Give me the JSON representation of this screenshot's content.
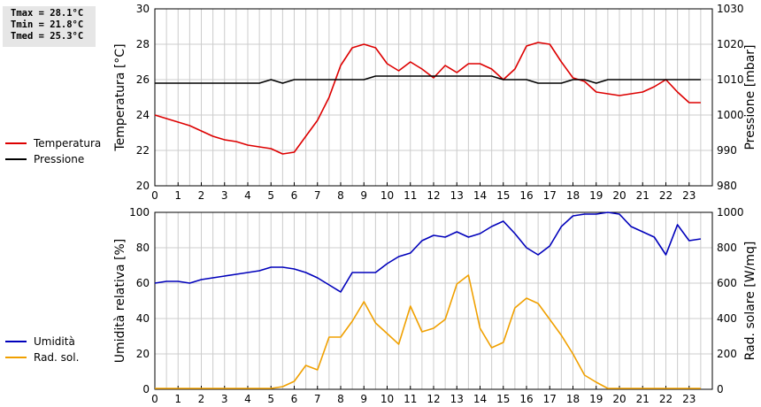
{
  "stats": {
    "tmax": "Tmax = 28.1°C",
    "tmin": "Tmin = 21.8°C",
    "tmed": "Tmed = 25.3°C"
  },
  "colors": {
    "temperature": "#dd0000",
    "pressure": "#000000",
    "humidity": "#0000bb",
    "radiation": "#f0a000",
    "grid": "#cccccc"
  },
  "chart_data": [
    {
      "type": "line",
      "x_ticks": [
        "0",
        "1",
        "2",
        "3",
        "4",
        "5",
        "6",
        "7",
        "8",
        "9",
        "10",
        "11",
        "12",
        "13",
        "14",
        "15",
        "16",
        "17",
        "18",
        "19",
        "20",
        "21",
        "22",
        "23"
      ],
      "xlim": [
        0,
        24
      ],
      "ylabel": "Temperatura [°C]",
      "ylabel_right": "Pressione [mbar]",
      "ylim": [
        20,
        30
      ],
      "ylim_right": [
        980,
        1030
      ],
      "yticks": [
        "20",
        "22",
        "24",
        "26",
        "28",
        "30"
      ],
      "yticks_right": [
        "980",
        "990",
        "1000",
        "1010",
        "1020",
        "1030"
      ],
      "grid": true,
      "legend_position": "left",
      "series": [
        {
          "name": "Temperatura",
          "axis": "left",
          "color_key": "temperature",
          "x": [
            0,
            0.5,
            1,
            1.5,
            2,
            2.5,
            3,
            3.5,
            4,
            4.5,
            5,
            5.5,
            6,
            6.5,
            7,
            7.5,
            8,
            8.5,
            9,
            9.5,
            10,
            10.5,
            11,
            11.5,
            12,
            12.5,
            13,
            13.5,
            14,
            14.5,
            15,
            15.5,
            16,
            16.5,
            17,
            17.5,
            18,
            18.5,
            19,
            19.5,
            20,
            20.5,
            21,
            21.5,
            22,
            22.5,
            23,
            23.5
          ],
          "values": [
            24.0,
            23.8,
            23.6,
            23.4,
            23.1,
            22.8,
            22.6,
            22.5,
            22.3,
            22.2,
            22.1,
            21.8,
            21.9,
            22.8,
            23.7,
            25.0,
            26.8,
            27.8,
            28.0,
            27.8,
            26.9,
            26.5,
            27.0,
            26.6,
            26.1,
            26.8,
            26.4,
            26.9,
            26.9,
            26.6,
            26.0,
            26.6,
            27.9,
            28.1,
            28.0,
            27.0,
            26.1,
            25.9,
            25.3,
            25.2,
            25.1,
            25.2,
            25.3,
            25.6,
            26.0,
            25.3,
            24.7,
            24.7
          ]
        },
        {
          "name": "Pressione",
          "axis": "right",
          "color_key": "pressure",
          "x": [
            0,
            0.5,
            1,
            1.5,
            2,
            2.5,
            3,
            3.5,
            4,
            4.5,
            5,
            5.5,
            6,
            6.5,
            7,
            7.5,
            8,
            8.5,
            9,
            9.5,
            10,
            10.5,
            11,
            11.5,
            12,
            12.5,
            13,
            13.5,
            14,
            14.5,
            15,
            15.5,
            16,
            16.5,
            17,
            17.5,
            18,
            18.5,
            19,
            19.5,
            20,
            20.5,
            21,
            21.5,
            22,
            22.5,
            23,
            23.5
          ],
          "values": [
            1009,
            1009,
            1009,
            1009,
            1009,
            1009,
            1009,
            1009,
            1009,
            1009,
            1010,
            1009,
            1010,
            1010,
            1010,
            1010,
            1010,
            1010,
            1010,
            1011,
            1011,
            1011,
            1011,
            1011,
            1011,
            1011,
            1011,
            1011,
            1011,
            1011,
            1010,
            1010,
            1010,
            1009,
            1009,
            1009,
            1010,
            1010,
            1009,
            1010,
            1010,
            1010,
            1010,
            1010,
            1010,
            1010,
            1010,
            1010
          ]
        }
      ]
    },
    {
      "type": "line",
      "x_ticks": [
        "0",
        "1",
        "2",
        "3",
        "4",
        "5",
        "6",
        "7",
        "8",
        "9",
        "10",
        "11",
        "12",
        "13",
        "14",
        "15",
        "16",
        "17",
        "18",
        "19",
        "20",
        "21",
        "22",
        "23"
      ],
      "xlim": [
        0,
        24
      ],
      "ylabel": "Umidità relativa [%]",
      "ylabel_right": "Rad. solare [W/mq]",
      "ylim": [
        0,
        100
      ],
      "ylim_right": [
        0,
        1000
      ],
      "yticks": [
        "0",
        "20",
        "40",
        "60",
        "80",
        "100"
      ],
      "yticks_right": [
        "0",
        "200",
        "400",
        "600",
        "800",
        "1000"
      ],
      "grid": true,
      "legend_position": "left",
      "series": [
        {
          "name": "Umidità",
          "axis": "left",
          "color_key": "humidity",
          "x": [
            0,
            0.5,
            1,
            1.5,
            2,
            2.5,
            3,
            3.5,
            4,
            4.5,
            5,
            5.5,
            6,
            6.5,
            7,
            7.5,
            8,
            8.5,
            9,
            9.5,
            10,
            10.5,
            11,
            11.5,
            12,
            12.5,
            13,
            13.5,
            14,
            14.5,
            15,
            15.5,
            16,
            16.5,
            17,
            17.5,
            18,
            18.5,
            19,
            19.5,
            20,
            20.5,
            21,
            21.5,
            22,
            22.5,
            23,
            23.5
          ],
          "values": [
            60,
            61,
            61,
            60,
            62,
            63,
            64,
            65,
            66,
            67,
            69,
            69,
            68,
            66,
            63,
            59,
            55,
            66,
            66,
            66,
            71,
            75,
            77,
            84,
            87,
            86,
            89,
            86,
            88,
            92,
            95,
            88,
            80,
            76,
            81,
            92,
            98,
            99,
            99,
            100,
            99,
            92,
            89,
            86,
            76,
            93,
            84,
            85
          ]
        },
        {
          "name": "Rad. sol.",
          "axis": "right",
          "color_key": "radiation",
          "x": [
            0,
            0.5,
            1,
            1.5,
            2,
            2.5,
            3,
            3.5,
            4,
            4.5,
            5,
            5.5,
            6,
            6.5,
            7,
            7.5,
            8,
            8.5,
            9,
            9.5,
            10,
            10.5,
            11,
            11.5,
            12,
            12.5,
            13,
            13.5,
            14,
            14.5,
            15,
            15.5,
            16,
            16.5,
            17,
            17.5,
            18,
            18.5,
            19,
            19.5,
            20,
            20.5,
            21,
            21.5,
            22,
            22.5,
            23,
            23.5
          ],
          "values": [
            5,
            5,
            5,
            5,
            5,
            5,
            5,
            5,
            5,
            5,
            5,
            15,
            45,
            135,
            110,
            295,
            295,
            385,
            495,
            375,
            315,
            255,
            470,
            325,
            345,
            395,
            595,
            645,
            345,
            235,
            265,
            460,
            515,
            485,
            395,
            305,
            200,
            80,
            40,
            5,
            5,
            5,
            5,
            5,
            5,
            5,
            5,
            5
          ]
        }
      ]
    }
  ]
}
